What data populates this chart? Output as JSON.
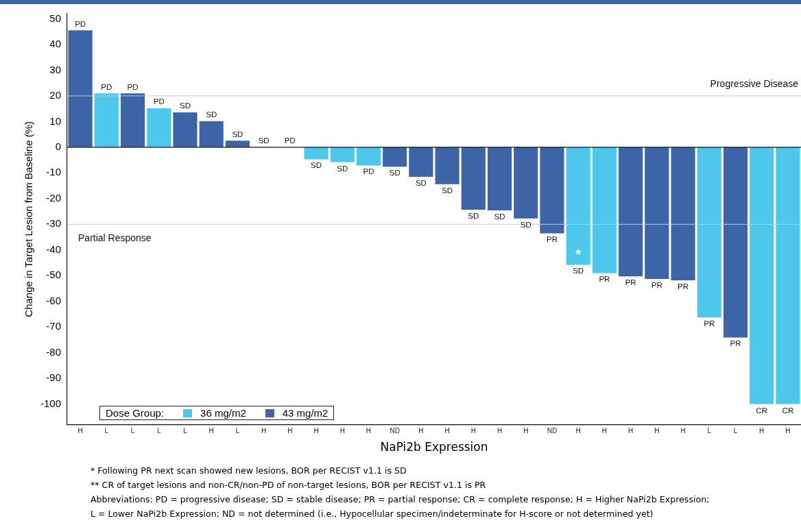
{
  "chart_data": {
    "type": "bar",
    "xlabel": "NaPi2b Expression",
    "ylabel": "Change in Target Lesion from Baseline (%)",
    "legend_title": "Dose Group:",
    "categories": [
      "H",
      "L",
      "L",
      "L",
      "L",
      "H",
      "L",
      "H",
      "H",
      "H",
      "H",
      "H",
      "ND",
      "H",
      "H",
      "H",
      "H",
      "H",
      "ND",
      "H",
      "H",
      "H",
      "H",
      "H",
      "L",
      "L",
      "H",
      "H"
    ],
    "stacked": true,
    "series": [
      {
        "name": "36 mg/m2",
        "color": "#4dc8ec",
        "values": [
          null,
          21,
          null,
          15.2,
          null,
          null,
          null,
          null,
          null,
          -4.7,
          -5.8,
          -7.1,
          null,
          null,
          null,
          null,
          null,
          null,
          null,
          -45.8,
          -49,
          null,
          null,
          null,
          -66.2,
          null,
          -100,
          -100
        ],
        "value_labels": [
          null,
          "PD",
          null,
          "PD",
          null,
          null,
          null,
          null,
          null,
          "SD",
          "SD",
          "PD",
          null,
          null,
          null,
          null,
          null,
          null,
          null,
          "SD",
          "PR",
          null,
          null,
          null,
          "PR",
          null,
          "CR",
          "CR"
        ]
      },
      {
        "name": "43 mg/m2",
        "color": "#3e64a8",
        "values": [
          45.5,
          null,
          21,
          null,
          13.6,
          10.2,
          2.6,
          0,
          0,
          null,
          null,
          null,
          -7.6,
          -11.5,
          -14.4,
          -24.3,
          -24.6,
          -27.7,
          -33.5,
          null,
          null,
          -50.3,
          -51.3,
          -51.8,
          null,
          -74.1,
          null,
          null
        ],
        "value_labels": [
          "PD",
          null,
          "PD",
          null,
          "SD",
          "SD",
          "SD",
          "SD",
          "PD",
          null,
          null,
          null,
          "SD",
          "SD",
          "SD",
          "SD",
          "SD",
          "SD",
          "PR",
          null,
          null,
          "PR",
          "PR",
          "PR",
          null,
          "PR",
          null,
          null
        ]
      }
    ],
    "ylim": [
      -108,
      52
    ],
    "yticks": [
      -100,
      -90,
      -80,
      -70,
      -60,
      -50,
      -40,
      -30,
      -20,
      -10,
      0,
      10,
      20,
      30,
      40,
      50
    ],
    "ref_lines": [
      {
        "axis": "y",
        "value": 20,
        "label": "Progressive Disease",
        "color": "#c8c8c8"
      },
      {
        "axis": "y",
        "value": -30,
        "label": "Partial Response",
        "color": "#c8c8c8"
      }
    ],
    "legend": "bottom left",
    "annotations": [
      {
        "text": "*",
        "y": -45.8
      },
      "* Following PR next scan showed new lesions, BOR per RECIST v1.1 is SD",
      "** CR of target lesions and non-CR/non-PD of non-target lesions, BOR per RECIST v1.1 is PR",
      "Abbreviations: PD = progressive disease; SD = stable disease; PR = partial response; CR = complete response; H = Higher NaPi2b Expression;",
      "L = Lower NaPi2b Expression; ND = not determined (i.e., Hypocellular specimen/indeterminate for H-score or not determined yet)"
    ]
  }
}
